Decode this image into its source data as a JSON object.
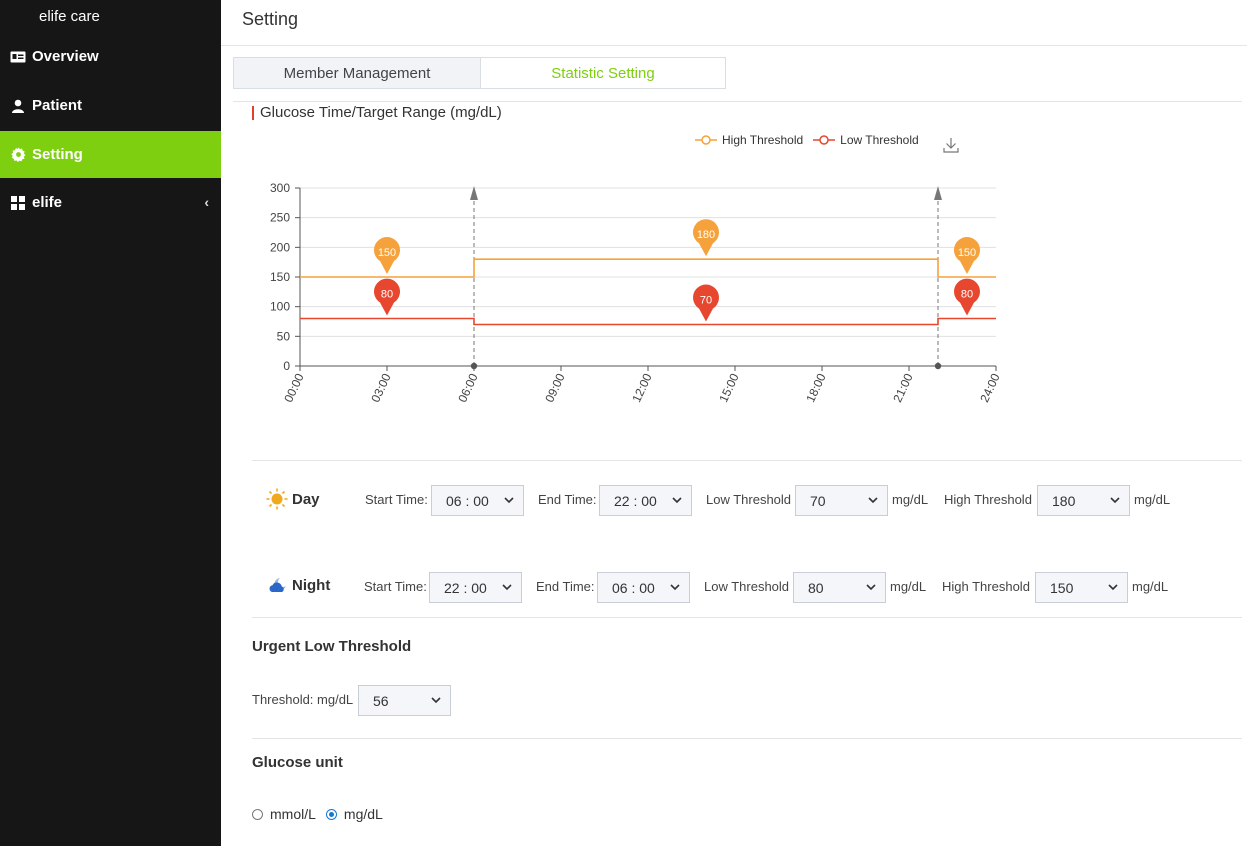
{
  "sidebar": {
    "brand": "elife care",
    "items": [
      {
        "label": "Overview",
        "icon": "id-card-icon",
        "active": false
      },
      {
        "label": "Patient",
        "icon": "person-icon",
        "active": false
      },
      {
        "label": "Setting",
        "icon": "gear-icon",
        "active": true
      },
      {
        "label": "elife",
        "icon": "grid-icon",
        "active": false,
        "chevron": "‹"
      }
    ],
    "active_color": "#7ecf10"
  },
  "header": {
    "title": "Setting"
  },
  "tabs": [
    {
      "label": "Member Management",
      "active": false
    },
    {
      "label": "Statistic Setting",
      "active": true
    }
  ],
  "chart": {
    "title": "Glucose Time/Target Range (mg/dL)"
  },
  "chart_data": {
    "type": "line",
    "title": "Glucose Time/Target Range (mg/dL)",
    "xlabel": "",
    "ylabel": "",
    "ylim": [
      0,
      300
    ],
    "yticks": [
      "0",
      "50",
      "100",
      "150",
      "200",
      "250",
      "300"
    ],
    "xlim": [
      0,
      24
    ],
    "xticks": [
      "00:00",
      "03:00",
      "06:00",
      "09:00",
      "12:00",
      "15:00",
      "18:00",
      "21:00",
      "24:00"
    ],
    "legend_position": "top-right",
    "series": [
      {
        "name": "High Threshold",
        "color": "#f5a23c",
        "step": [
          [
            0,
            150
          ],
          [
            6,
            150
          ],
          [
            6,
            180
          ],
          [
            22,
            180
          ],
          [
            22,
            150
          ],
          [
            24,
            150
          ]
        ],
        "markers": [
          {
            "x": 3,
            "value": 150,
            "label": "150"
          },
          {
            "x": 14,
            "value": 180,
            "label": "180"
          },
          {
            "x": 23,
            "value": 150,
            "label": "150"
          }
        ]
      },
      {
        "name": "Low Threshold",
        "color": "#e8472f",
        "step": [
          [
            0,
            80
          ],
          [
            6,
            80
          ],
          [
            6,
            70
          ],
          [
            22,
            70
          ],
          [
            22,
            80
          ],
          [
            24,
            80
          ]
        ],
        "markers": [
          {
            "x": 3,
            "value": 80,
            "label": "80"
          },
          {
            "x": 14,
            "value": 70,
            "label": "70"
          },
          {
            "x": 23,
            "value": 80,
            "label": "80"
          }
        ]
      }
    ],
    "vertical_markers": [
      6,
      22
    ]
  },
  "day": {
    "label": "Day",
    "start_label": "Start Time:",
    "start_value": "06 : 00",
    "end_label": "End Time:",
    "end_value": "22 : 00",
    "low_label": "Low Threshold",
    "low_value": "70",
    "high_label": "High Threshold",
    "high_value": "180",
    "unit": "mg/dL"
  },
  "night": {
    "label": "Night",
    "start_label": "Start Time:",
    "start_value": "22 : 00",
    "end_label": "End Time:",
    "end_value": "06 : 00",
    "low_label": "Low Threshold",
    "low_value": "80",
    "high_label": "High Threshold",
    "high_value": "150",
    "unit": "mg/dL"
  },
  "urgent_low": {
    "title": "Urgent Low Threshold",
    "label": "Threshold: mg/dL",
    "value": "56"
  },
  "glucose_unit": {
    "title": "Glucose unit",
    "options": [
      {
        "label": "mmol/L",
        "checked": false
      },
      {
        "label": "mg/dL",
        "checked": true
      }
    ]
  }
}
